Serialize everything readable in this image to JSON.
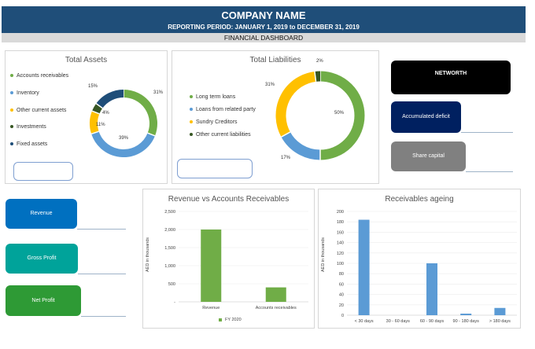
{
  "header": {
    "company": "COMPANY NAME",
    "period": "REPORTING PERIOD:  JANUARY 1, 2019 to DECEMBER 31, 2019",
    "subtitle": "FINANCIAL DASHBOARD"
  },
  "colors": {
    "header_bg": "#1f4e79",
    "green": "#70ad47",
    "blue": "#5b9bd5",
    "yellow": "#ffc000",
    "darkgreen": "#375623",
    "navy": "#1f4e79"
  },
  "assets": {
    "title": "Total Assets",
    "legend": [
      {
        "label": "Accounts receivables",
        "color": "#70ad47"
      },
      {
        "label": "Inventory",
        "color": "#5b9bd5"
      },
      {
        "label": "Other current assets",
        "color": "#ffc000"
      },
      {
        "label": "Investments",
        "color": "#375623"
      },
      {
        "label": "Fixed assets",
        "color": "#1f4e79"
      }
    ],
    "slices": [
      31,
      39,
      11,
      4,
      15
    ],
    "labels": [
      "31%",
      "39%",
      "11%",
      "4%",
      "15%"
    ]
  },
  "liabilities": {
    "title": "Total Liabilities",
    "legend": [
      {
        "label": "Long term loans",
        "color": "#70ad47"
      },
      {
        "label": "Loans from related party",
        "color": "#5b9bd5"
      },
      {
        "label": "Sundry Creditors",
        "color": "#ffc000"
      },
      {
        "label": "Other current liabilities",
        "color": "#375623"
      }
    ],
    "slices": [
      50,
      17,
      31,
      2
    ],
    "labels": [
      "50%",
      "17%",
      "31%",
      "2%"
    ]
  },
  "cards": {
    "networth": "NETWORTH",
    "deficit": "Accumulated deficit",
    "share": "Share capital",
    "revenue": "Revenue",
    "gross": "Gross Profit",
    "net": "Net Profit"
  },
  "chart_data": [
    {
      "type": "bar",
      "title": "Revenue vs Accounts Receivables",
      "ylabel": "AED in thousands",
      "categories": [
        "Revenue",
        "Accounts receivables"
      ],
      "series": [
        {
          "name": "FY 2020",
          "values": [
            2000,
            400
          ]
        }
      ],
      "ylim": [
        0,
        2500
      ],
      "yticks": [
        "-",
        "500",
        "1,000",
        "1,500",
        "2,000",
        "2,500"
      ],
      "legend": "bottom"
    },
    {
      "type": "bar",
      "title": "Receivables ageing",
      "ylabel": "AED in thousands",
      "categories": [
        "< 30 days",
        "30 - 60 days",
        "60 - 90 days",
        "90 - 180 days",
        "> 180 days"
      ],
      "values": [
        184,
        0,
        100,
        3,
        14
      ],
      "ylim": [
        0,
        200
      ],
      "yticks": [
        "0",
        "20",
        "40",
        "60",
        "80",
        "100",
        "120",
        "140",
        "160",
        "180",
        "200"
      ]
    }
  ]
}
